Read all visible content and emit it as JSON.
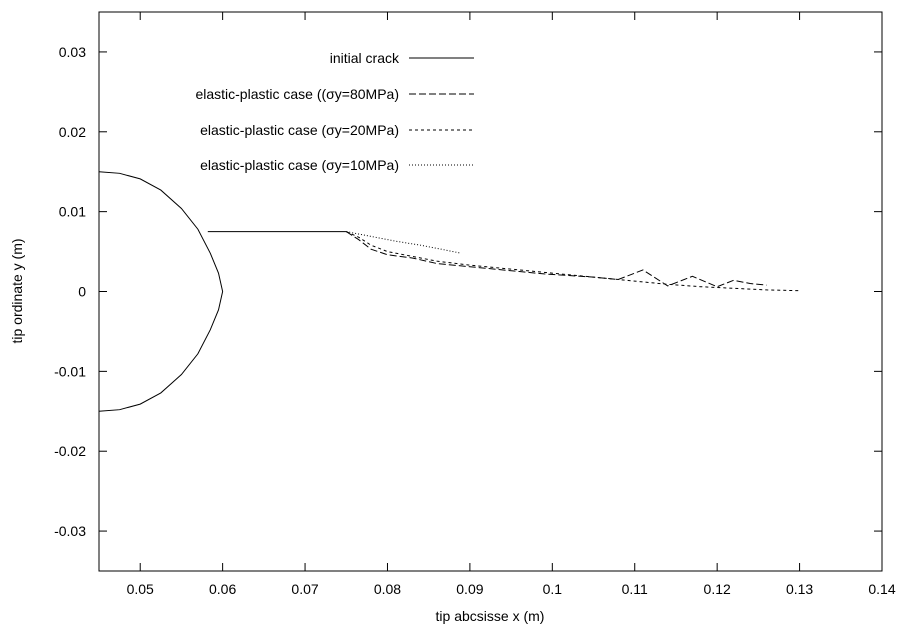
{
  "chart_data": {
    "type": "line",
    "title": "",
    "xlabel": "tip abcsisse x (m)",
    "ylabel": "tip ordinate y (m)",
    "xlim": [
      0.045,
      0.14
    ],
    "ylim": [
      -0.035,
      0.035
    ],
    "xticks": [
      0.05,
      0.06,
      0.07,
      0.08,
      0.09,
      0.1,
      0.11,
      0.12,
      0.13,
      0.14
    ],
    "xtick_labels": [
      "0.05",
      "0.06",
      "0.07",
      "0.08",
      "0.09",
      "0.1",
      "0.11",
      "0.12",
      "0.13",
      "0.14"
    ],
    "yticks": [
      0.03,
      0.02,
      0.01,
      0,
      -0.01,
      -0.02,
      -0.03
    ],
    "ytick_labels": [
      "0.03",
      "0.02",
      "0.01",
      "0",
      "-0.01",
      "-0.02",
      "-0.03"
    ],
    "grid": false,
    "legend_position": "top-center",
    "series": [
      {
        "name": "initial crack",
        "style": "solid",
        "x": [
          0.045,
          0.0475,
          0.05,
          0.0525,
          0.055,
          0.057,
          0.0585,
          0.0595,
          0.06,
          0.0595,
          0.0585,
          0.057,
          0.055,
          0.0525,
          0.05,
          0.0475,
          0.045
        ],
        "y": [
          0.015,
          0.0148,
          0.0141,
          0.0127,
          0.0104,
          0.0078,
          0.0048,
          0.0023,
          0,
          -0.0023,
          -0.0048,
          -0.0078,
          -0.0104,
          -0.0127,
          -0.0141,
          -0.0148,
          -0.015
        ],
        "crack_x": [
          0.0582,
          0.075
        ],
        "crack_y": [
          0.0075,
          0.0075
        ]
      },
      {
        "name": "elastic-plastic case ((σy=80MPa)",
        "style": "dashed",
        "x": [
          0.075,
          0.0765,
          0.078,
          0.08,
          0.083,
          0.086,
          0.09,
          0.093,
          0.096,
          0.099,
          0.102,
          0.105,
          0.108,
          0.111,
          0.114,
          0.117,
          0.12,
          0.122,
          0.124,
          0.126
        ],
        "y": [
          0.0075,
          0.0065,
          0.0053,
          0.0046,
          0.0042,
          0.0035,
          0.0031,
          0.0028,
          0.0025,
          0.0022,
          0.002,
          0.0018,
          0.0015,
          0.0027,
          0.0007,
          0.0019,
          0.0006,
          0.0014,
          0.001,
          0.0008
        ]
      },
      {
        "name": "elastic-plastic case (σy=20MPa)",
        "style": "short-dashed",
        "x": [
          0.075,
          0.0765,
          0.078,
          0.08,
          0.083,
          0.086,
          0.09,
          0.094,
          0.098,
          0.102,
          0.106,
          0.11,
          0.114,
          0.118,
          0.122,
          0.126,
          0.13
        ],
        "y": [
          0.0075,
          0.0068,
          0.0058,
          0.005,
          0.0044,
          0.0038,
          0.0033,
          0.0029,
          0.0025,
          0.0021,
          0.0017,
          0.0013,
          0.0009,
          0.0006,
          0.0004,
          0.0002,
          0.0001
        ]
      },
      {
        "name": "elastic-plastic case (σy=10MPa)",
        "style": "dotted",
        "x": [
          0.075,
          0.078,
          0.081,
          0.084,
          0.0865,
          0.0889
        ],
        "y": [
          0.0075,
          0.0069,
          0.0063,
          0.0058,
          0.0053,
          0.0048
        ]
      }
    ]
  }
}
